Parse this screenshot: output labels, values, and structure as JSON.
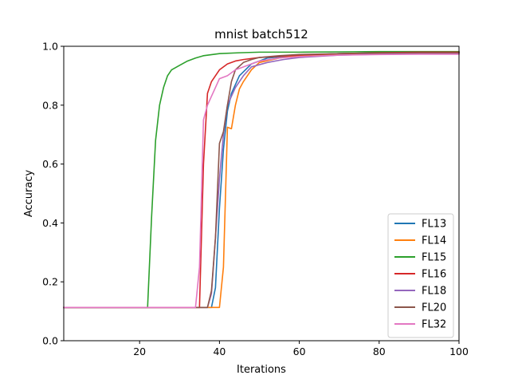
{
  "chart_data": {
    "type": "line",
    "title": "mnist batch512",
    "xlabel": "Iterations",
    "ylabel": "Accuracy",
    "xlim": [
      1,
      100
    ],
    "ylim": [
      0.0,
      1.0
    ],
    "xticks": [
      20,
      40,
      60,
      80,
      100
    ],
    "yticks": [
      0.0,
      0.2,
      0.4,
      0.6,
      0.8,
      1.0
    ],
    "xtick_labels": [
      "20",
      "40",
      "60",
      "80",
      "100"
    ],
    "ytick_labels": [
      "0.0",
      "0.2",
      "0.4",
      "0.6",
      "0.8",
      "1.0"
    ],
    "grid": false,
    "legend_position": "lower-right",
    "series": [
      {
        "name": "FL13",
        "color": "#1f77b4",
        "x": [
          1,
          38,
          39,
          40,
          41,
          42,
          43,
          45,
          48,
          52,
          60,
          70,
          80,
          90,
          100
        ],
        "y": [
          0.113,
          0.113,
          0.18,
          0.45,
          0.65,
          0.78,
          0.84,
          0.9,
          0.94,
          0.96,
          0.97,
          0.975,
          0.978,
          0.98,
          0.98
        ]
      },
      {
        "name": "FL14",
        "color": "#ff7f0e",
        "x": [
          1,
          40,
          41,
          42,
          43,
          44,
          45,
          46,
          48,
          50,
          55,
          60,
          70,
          80,
          90,
          100
        ],
        "y": [
          0.113,
          0.113,
          0.25,
          0.725,
          0.72,
          0.8,
          0.855,
          0.88,
          0.92,
          0.945,
          0.96,
          0.968,
          0.972,
          0.975,
          0.977,
          0.978
        ]
      },
      {
        "name": "FL15",
        "color": "#2ca02c",
        "x": [
          1,
          22,
          23,
          24,
          25,
          26,
          27,
          28,
          30,
          32,
          34,
          36,
          40,
          45,
          50,
          60,
          70,
          80,
          90,
          100
        ],
        "y": [
          0.113,
          0.113,
          0.42,
          0.68,
          0.8,
          0.86,
          0.9,
          0.92,
          0.935,
          0.95,
          0.96,
          0.968,
          0.975,
          0.978,
          0.98,
          0.98,
          0.981,
          0.982,
          0.982,
          0.982
        ]
      },
      {
        "name": "FL16",
        "color": "#d62728",
        "x": [
          1,
          35,
          36,
          37,
          38,
          39,
          40,
          42,
          44,
          46,
          50,
          60,
          70,
          80,
          90,
          100
        ],
        "y": [
          0.113,
          0.113,
          0.6,
          0.84,
          0.88,
          0.9,
          0.92,
          0.94,
          0.95,
          0.955,
          0.962,
          0.97,
          0.975,
          0.978,
          0.98,
          0.98
        ]
      },
      {
        "name": "FL18",
        "color": "#9467bd",
        "x": [
          1,
          37,
          38,
          39,
          40,
          41,
          42,
          43,
          44,
          46,
          48,
          52,
          56,
          60,
          70,
          80,
          90,
          100
        ],
        "y": [
          0.113,
          0.113,
          0.16,
          0.35,
          0.55,
          0.7,
          0.8,
          0.83,
          0.86,
          0.9,
          0.93,
          0.945,
          0.955,
          0.962,
          0.97,
          0.973,
          0.975,
          0.976
        ]
      },
      {
        "name": "FL20",
        "color": "#8c564b",
        "x": [
          1,
          37,
          38,
          39,
          40,
          41,
          42,
          43,
          44,
          46,
          48,
          50,
          55,
          60,
          70,
          80,
          90,
          100
        ],
        "y": [
          0.113,
          0.113,
          0.17,
          0.35,
          0.67,
          0.71,
          0.8,
          0.88,
          0.92,
          0.945,
          0.955,
          0.962,
          0.968,
          0.972,
          0.975,
          0.977,
          0.978,
          0.978
        ]
      },
      {
        "name": "FL32",
        "color": "#e377c2",
        "x": [
          1,
          34,
          35,
          36,
          37,
          38,
          39,
          40,
          42,
          44,
          46,
          48,
          50,
          55,
          60,
          70,
          80,
          90,
          100
        ],
        "y": [
          0.113,
          0.113,
          0.25,
          0.75,
          0.8,
          0.83,
          0.86,
          0.89,
          0.9,
          0.92,
          0.93,
          0.94,
          0.95,
          0.96,
          0.965,
          0.97,
          0.972,
          0.973,
          0.973
        ]
      }
    ]
  }
}
